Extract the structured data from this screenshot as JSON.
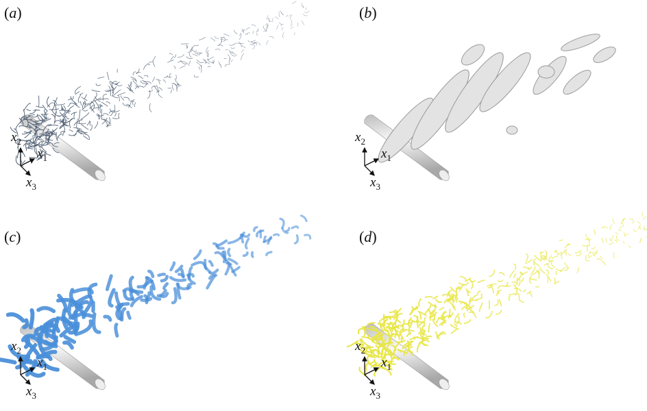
{
  "panels": [
    {
      "label_open": "(",
      "label_letter": "a",
      "label_close": ")",
      "style": "thin-lines",
      "color": "#4a5a70"
    },
    {
      "label_open": "(",
      "label_letter": "b",
      "label_close": ")",
      "style": "smooth-blobs",
      "color": "#d8d8d8"
    },
    {
      "label_open": "(",
      "label_letter": "c",
      "label_close": ")",
      "style": "tubes",
      "color": "#4a8fd9"
    },
    {
      "label_open": "(",
      "label_letter": "d",
      "label_close": ")",
      "style": "fine-tubes",
      "color": "#e8e645"
    }
  ],
  "axes": {
    "x1": "x",
    "x1_sub": "1",
    "x2": "x",
    "x2_sub": "2",
    "x3": "x",
    "x3_sub": "3"
  }
}
